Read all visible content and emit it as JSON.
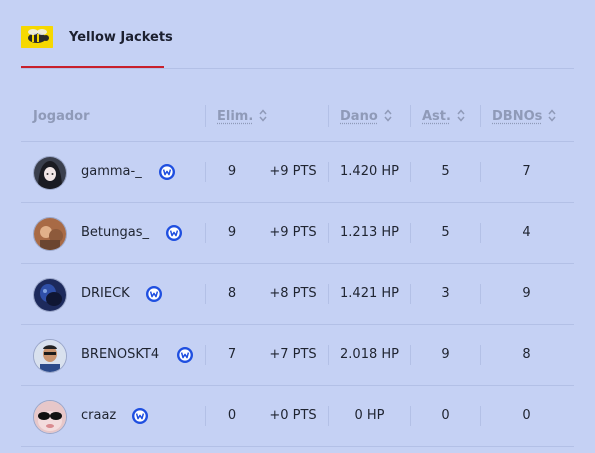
{
  "team": {
    "name": "Yellow Jackets"
  },
  "table": {
    "headers": {
      "player": "Jogador",
      "elims": "Elim.",
      "damage": "Dano",
      "assists": "Ast.",
      "dbnos": "DBNOs"
    },
    "rows": [
      {
        "name": "gamma-_",
        "elims": "9",
        "pts": "+9 PTS",
        "damage": "1.420 HP",
        "assists": "5",
        "dbnos": "7"
      },
      {
        "name": "Betungas_",
        "elims": "9",
        "pts": "+9 PTS",
        "damage": "1.213 HP",
        "assists": "5",
        "dbnos": "4"
      },
      {
        "name": "DRIECK",
        "elims": "8",
        "pts": "+8 PTS",
        "damage": "1.421 HP",
        "assists": "3",
        "dbnos": "9"
      },
      {
        "name": "BRENOSKT4",
        "elims": "7",
        "pts": "+7 PTS",
        "damage": "2.018 HP",
        "assists": "9",
        "dbnos": "8"
      },
      {
        "name": "craaz",
        "elims": "0",
        "pts": "+0 PTS",
        "damage": "0 HP",
        "assists": "0",
        "dbnos": "0"
      }
    ]
  },
  "colors": {
    "background": "#c5d1f4",
    "tab_underline": "#c8202c",
    "verified_badge": "#1f4fe0",
    "team_logo": "#f6d800"
  },
  "icons": {
    "badge": "verified-badge-icon",
    "sort": "sort-arrows-icon"
  }
}
